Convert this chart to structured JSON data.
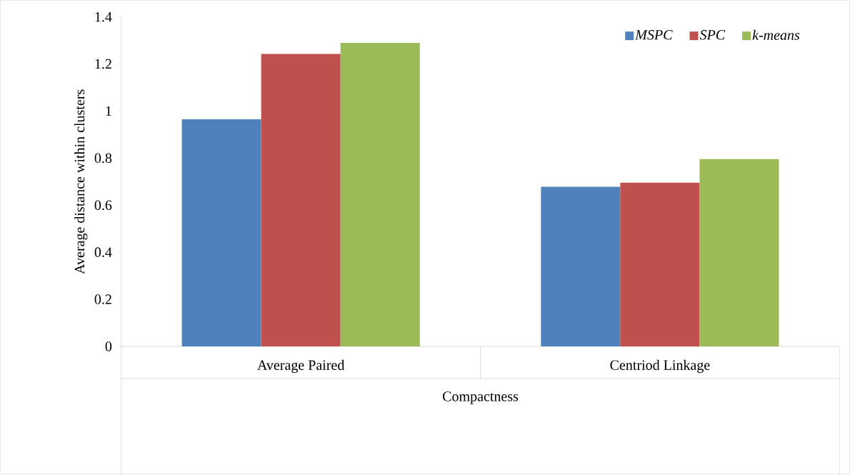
{
  "chart_data": {
    "type": "bar",
    "ylabel": "Average distance within clusters",
    "xlabel": "Compactness",
    "categories": [
      "Average Paired",
      "Centriod Linkage"
    ],
    "series": [
      {
        "name": "MSPC",
        "color": "#4f81bd",
        "values": [
          0.965,
          0.678
        ]
      },
      {
        "name": "SPC",
        "color": "#c0504d",
        "values": [
          1.243,
          0.696
        ]
      },
      {
        "name": "k-means",
        "color": "#9bbb59",
        "values": [
          1.29,
          0.796
        ]
      }
    ],
    "ylim": [
      0,
      1.4
    ],
    "yticks": [
      0,
      0.2,
      0.4,
      0.6,
      0.8,
      1,
      1.2,
      1.4
    ],
    "grid": false,
    "legend": "top right"
  }
}
